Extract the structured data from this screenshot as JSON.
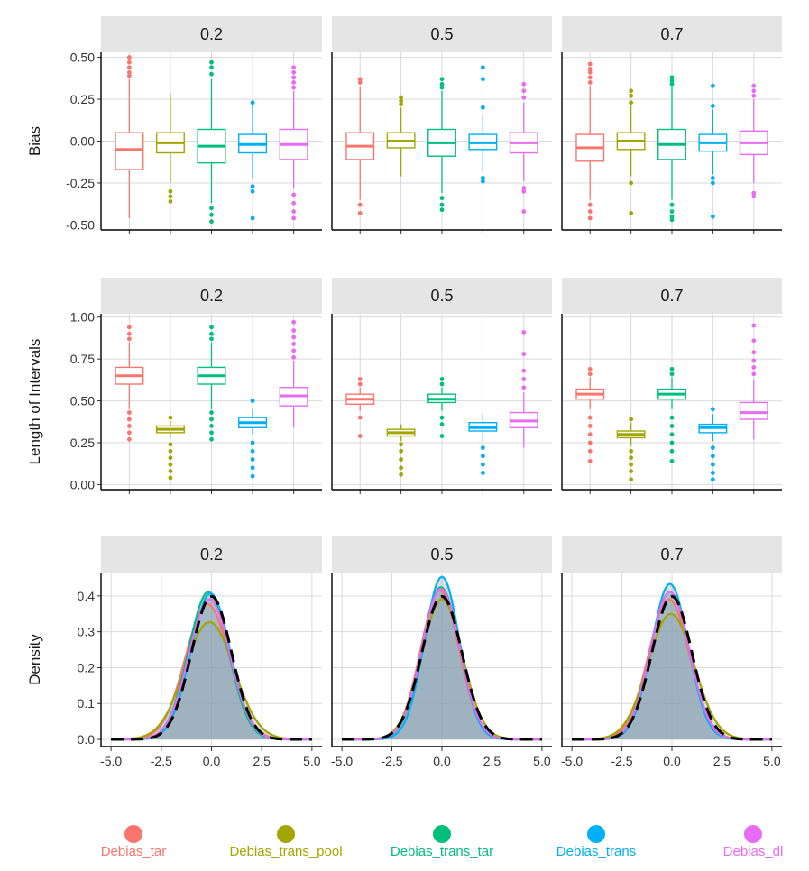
{
  "colors": {
    "Debias_tar": "#F8766D",
    "Debias_trans_pool": "#A3A500",
    "Debias_trans_tar": "#00BF7D",
    "Debias_trans": "#00B0F6",
    "Debias_dl": "#E76BF3",
    "normal_ref": "#000000",
    "fill": "#8fa5b5"
  },
  "legend": [
    "Debias_tar",
    "Debias_trans_pool",
    "Debias_trans_tar",
    "Debias_trans",
    "Debias_dl"
  ],
  "chart_data": [
    {
      "type": "boxplot",
      "ylabel": "Bias",
      "ylim": [
        -0.53,
        0.53
      ],
      "yticks": [
        -0.5,
        -0.25,
        0,
        0.25,
        0.5
      ],
      "ytick_labels": [
        "-0.50",
        "-0.25",
        "0.00",
        "0.25",
        "0.50"
      ],
      "panels": [
        {
          "facet": "0.2",
          "series": [
            {
              "name": "Debias_tar",
              "q1": -0.17,
              "median": -0.05,
              "q3": 0.05,
              "whisker_low": -0.46,
              "whisker_high": 0.37,
              "outliers": [
                0.39,
                0.41,
                0.44,
                0.47,
                0.5
              ]
            },
            {
              "name": "Debias_trans_pool",
              "q1": -0.07,
              "median": -0.01,
              "q3": 0.05,
              "whisker_low": -0.25,
              "whisker_high": 0.28,
              "outliers": [
                -0.3,
                -0.33,
                -0.36
              ]
            },
            {
              "name": "Debias_trans_tar",
              "q1": -0.13,
              "median": -0.03,
              "q3": 0.07,
              "whisker_low": -0.37,
              "whisker_high": 0.37,
              "outliers": [
                -0.4,
                -0.44,
                -0.48,
                0.4,
                0.44,
                0.47
              ]
            },
            {
              "name": "Debias_trans",
              "q1": -0.07,
              "median": -0.02,
              "q3": 0.04,
              "whisker_low": -0.22,
              "whisker_high": 0.22,
              "outliers": [
                -0.27,
                -0.3,
                -0.46,
                0.23
              ]
            },
            {
              "name": "Debias_dl",
              "q1": -0.11,
              "median": -0.02,
              "q3": 0.07,
              "whisker_low": -0.28,
              "whisker_high": 0.3,
              "outliers": [
                -0.32,
                -0.37,
                -0.42,
                -0.46,
                0.32,
                0.35,
                0.38,
                0.41,
                0.44
              ]
            }
          ]
        },
        {
          "facet": "0.5",
          "series": [
            {
              "name": "Debias_tar",
              "q1": -0.11,
              "median": -0.03,
              "q3": 0.05,
              "whisker_low": -0.35,
              "whisker_high": 0.32,
              "outliers": [
                -0.38,
                -0.43,
                0.35,
                0.37
              ]
            },
            {
              "name": "Debias_trans_pool",
              "q1": -0.04,
              "median": 0.0,
              "q3": 0.05,
              "whisker_low": -0.21,
              "whisker_high": 0.2,
              "outliers": [
                0.22,
                0.24,
                0.26
              ]
            },
            {
              "name": "Debias_trans_tar",
              "q1": -0.09,
              "median": -0.01,
              "q3": 0.07,
              "whisker_low": -0.31,
              "whisker_high": 0.3,
              "outliers": [
                -0.34,
                -0.38,
                -0.41,
                0.32,
                0.34,
                0.37
              ]
            },
            {
              "name": "Debias_trans",
              "q1": -0.05,
              "median": -0.01,
              "q3": 0.04,
              "whisker_low": -0.18,
              "whisker_high": 0.16,
              "outliers": [
                -0.22,
                -0.24,
                0.2,
                0.37,
                0.44
              ]
            },
            {
              "name": "Debias_dl",
              "q1": -0.07,
              "median": -0.01,
              "q3": 0.05,
              "whisker_low": -0.24,
              "whisker_high": 0.23,
              "outliers": [
                -0.28,
                -0.3,
                -0.42,
                0.26,
                0.3,
                0.34
              ]
            }
          ]
        },
        {
          "facet": "0.7",
          "series": [
            {
              "name": "Debias_tar",
              "q1": -0.12,
              "median": -0.04,
              "q3": 0.04,
              "whisker_low": -0.35,
              "whisker_high": 0.33,
              "outliers": [
                -0.38,
                -0.42,
                -0.46,
                0.35,
                0.38,
                0.41,
                0.43,
                0.46
              ]
            },
            {
              "name": "Debias_trans_pool",
              "q1": -0.05,
              "median": 0.0,
              "q3": 0.05,
              "whisker_low": -0.21,
              "whisker_high": 0.21,
              "outliers": [
                -0.25,
                -0.43,
                0.23,
                0.27,
                0.3
              ]
            },
            {
              "name": "Debias_trans_tar",
              "q1": -0.11,
              "median": -0.02,
              "q3": 0.07,
              "whisker_low": -0.35,
              "whisker_high": 0.32,
              "outliers": [
                -0.38,
                -0.42,
                -0.45,
                -0.47,
                0.34,
                0.36,
                0.38
              ]
            },
            {
              "name": "Debias_trans",
              "q1": -0.06,
              "median": -0.01,
              "q3": 0.04,
              "whisker_low": -0.2,
              "whisker_high": 0.19,
              "outliers": [
                -0.22,
                -0.25,
                -0.45,
                0.21,
                0.33
              ]
            },
            {
              "name": "Debias_dl",
              "q1": -0.08,
              "median": -0.01,
              "q3": 0.06,
              "whisker_low": -0.25,
              "whisker_high": 0.25,
              "outliers": [
                -0.31,
                -0.33,
                0.27,
                0.3,
                0.33
              ]
            }
          ]
        }
      ]
    },
    {
      "type": "boxplot",
      "ylabel": "Length of Intervals",
      "ylim": [
        -0.03,
        1.02
      ],
      "yticks": [
        0,
        0.25,
        0.5,
        0.75,
        1.0
      ],
      "ytick_labels": [
        "0.00",
        "0.25",
        "0.50",
        "0.75",
        "1.00"
      ],
      "panels": [
        {
          "facet": "0.2",
          "series": [
            {
              "name": "Debias_tar",
              "q1": 0.6,
              "median": 0.65,
              "q3": 0.7,
              "whisker_low": 0.45,
              "whisker_high": 0.85,
              "outliers": [
                0.27,
                0.31,
                0.35,
                0.39,
                0.43,
                0.87,
                0.9,
                0.94
              ]
            },
            {
              "name": "Debias_trans_pool",
              "q1": 0.31,
              "median": 0.33,
              "q3": 0.35,
              "whisker_low": 0.28,
              "whisker_high": 0.38,
              "outliers": [
                0.04,
                0.08,
                0.12,
                0.16,
                0.2,
                0.24,
                0.4
              ]
            },
            {
              "name": "Debias_trans_tar",
              "q1": 0.6,
              "median": 0.65,
              "q3": 0.7,
              "whisker_low": 0.45,
              "whisker_high": 0.85,
              "outliers": [
                0.27,
                0.31,
                0.35,
                0.39,
                0.43,
                0.87,
                0.9,
                0.94
              ]
            },
            {
              "name": "Debias_trans",
              "q1": 0.34,
              "median": 0.37,
              "q3": 0.4,
              "whisker_low": 0.3,
              "whisker_high": 0.45,
              "outliers": [
                0.05,
                0.1,
                0.15,
                0.2,
                0.25,
                0.5
              ]
            },
            {
              "name": "Debias_dl",
              "q1": 0.47,
              "median": 0.53,
              "q3": 0.58,
              "whisker_low": 0.34,
              "whisker_high": 0.74,
              "outliers": [
                0.76,
                0.8,
                0.84,
                0.88,
                0.92,
                0.97
              ]
            }
          ]
        },
        {
          "facet": "0.5",
          "series": [
            {
              "name": "Debias_tar",
              "q1": 0.48,
              "median": 0.51,
              "q3": 0.54,
              "whisker_low": 0.44,
              "whisker_high": 0.58,
              "outliers": [
                0.29,
                0.4,
                0.6,
                0.63
              ]
            },
            {
              "name": "Debias_trans_pool",
              "q1": 0.29,
              "median": 0.31,
              "q3": 0.33,
              "whisker_low": 0.26,
              "whisker_high": 0.36,
              "outliers": [
                0.06,
                0.1,
                0.15,
                0.2,
                0.24
              ]
            },
            {
              "name": "Debias_trans_tar",
              "q1": 0.49,
              "median": 0.51,
              "q3": 0.54,
              "whisker_low": 0.44,
              "whisker_high": 0.58,
              "outliers": [
                0.29,
                0.36,
                0.4,
                0.6,
                0.63
              ]
            },
            {
              "name": "Debias_trans",
              "q1": 0.32,
              "median": 0.34,
              "q3": 0.37,
              "whisker_low": 0.26,
              "whisker_high": 0.42,
              "outliers": [
                0.07,
                0.12,
                0.17,
                0.22
              ]
            },
            {
              "name": "Debias_dl",
              "q1": 0.34,
              "median": 0.38,
              "q3": 0.43,
              "whisker_low": 0.22,
              "whisker_high": 0.55,
              "outliers": [
                0.58,
                0.63,
                0.68,
                0.78,
                0.91
              ]
            }
          ]
        },
        {
          "facet": "0.7",
          "series": [
            {
              "name": "Debias_tar",
              "q1": 0.51,
              "median": 0.54,
              "q3": 0.57,
              "whisker_low": 0.45,
              "whisker_high": 0.64,
              "outliers": [
                0.14,
                0.2,
                0.25,
                0.3,
                0.35,
                0.4,
                0.66,
                0.69
              ]
            },
            {
              "name": "Debias_trans_pool",
              "q1": 0.28,
              "median": 0.3,
              "q3": 0.32,
              "whisker_low": 0.23,
              "whisker_high": 0.37,
              "outliers": [
                0.03,
                0.08,
                0.12,
                0.16,
                0.2,
                0.39
              ]
            },
            {
              "name": "Debias_trans_tar",
              "q1": 0.51,
              "median": 0.54,
              "q3": 0.57,
              "whisker_low": 0.45,
              "whisker_high": 0.64,
              "outliers": [
                0.14,
                0.2,
                0.25,
                0.3,
                0.35,
                0.4,
                0.66,
                0.69
              ]
            },
            {
              "name": "Debias_trans",
              "q1": 0.31,
              "median": 0.34,
              "q3": 0.36,
              "whisker_low": 0.26,
              "whisker_high": 0.42,
              "outliers": [
                0.03,
                0.07,
                0.12,
                0.17,
                0.22,
                0.45
              ]
            },
            {
              "name": "Debias_dl",
              "q1": 0.39,
              "median": 0.43,
              "q3": 0.49,
              "whisker_low": 0.27,
              "whisker_high": 0.63,
              "outliers": [
                0.66,
                0.7,
                0.74,
                0.79,
                0.86,
                0.95
              ]
            }
          ]
        }
      ]
    },
    {
      "type": "density",
      "ylabel": "Density",
      "xlim": [
        -5.5,
        5.5
      ],
      "ylim": [
        -0.02,
        0.465
      ],
      "xticks": [
        -5,
        -2.5,
        0,
        2.5,
        5
      ],
      "xtick_labels": [
        "-5.0",
        "-2.5",
        "0.0",
        "2.5",
        "5.0"
      ],
      "yticks": [
        0,
        0.1,
        0.2,
        0.3,
        0.4
      ],
      "ytick_labels": [
        "0.0",
        "0.1",
        "0.2",
        "0.3",
        "0.4"
      ],
      "panels": [
        {
          "facet": "0.2",
          "series": [
            {
              "name": "Debias_tar",
              "mu": -0.2,
              "sigma": 1.1,
              "scale": 1.04
            },
            {
              "name": "Debias_trans_pool",
              "mu": -0.1,
              "sigma": 1.22,
              "scale": 1.0
            },
            {
              "name": "Debias_trans_tar",
              "mu": -0.15,
              "sigma": 0.99,
              "scale": 1.02
            },
            {
              "name": "Debias_trans",
              "mu": -0.05,
              "sigma": 0.98,
              "scale": 1.0
            },
            {
              "name": "Debias_dl",
              "mu": -0.1,
              "sigma": 1.02,
              "scale": 1.0
            }
          ]
        },
        {
          "facet": "0.5",
          "series": [
            {
              "name": "Debias_tar",
              "mu": -0.1,
              "sigma": 0.96,
              "scale": 1.0
            },
            {
              "name": "Debias_trans_pool",
              "mu": 0.0,
              "sigma": 1.02,
              "scale": 1.0
            },
            {
              "name": "Debias_trans_tar",
              "mu": -0.05,
              "sigma": 0.94,
              "scale": 1.0
            },
            {
              "name": "Debias_trans",
              "mu": 0.0,
              "sigma": 0.88,
              "scale": 1.0
            },
            {
              "name": "Debias_dl",
              "mu": -0.05,
              "sigma": 0.95,
              "scale": 1.0
            }
          ]
        },
        {
          "facet": "0.7",
          "series": [
            {
              "name": "Debias_tar",
              "mu": -0.15,
              "sigma": 1.02,
              "scale": 1.0
            },
            {
              "name": "Debias_trans_pool",
              "mu": -0.05,
              "sigma": 1.14,
              "scale": 1.0
            },
            {
              "name": "Debias_trans_tar",
              "mu": -0.1,
              "sigma": 0.97,
              "scale": 1.0
            },
            {
              "name": "Debias_trans",
              "mu": -0.1,
              "sigma": 0.92,
              "scale": 1.0
            },
            {
              "name": "Debias_dl",
              "mu": -0.1,
              "sigma": 0.97,
              "scale": 1.0
            }
          ]
        }
      ],
      "reference": {
        "name": "standard normal",
        "mu": 0,
        "sigma": 1
      }
    }
  ]
}
